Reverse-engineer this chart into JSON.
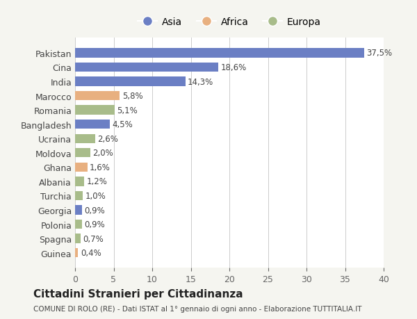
{
  "countries": [
    "Pakistan",
    "Cina",
    "India",
    "Marocco",
    "Romania",
    "Bangladesh",
    "Ucraina",
    "Moldova",
    "Ghana",
    "Albania",
    "Turchia",
    "Georgia",
    "Polonia",
    "Spagna",
    "Guinea"
  ],
  "values": [
    37.5,
    18.6,
    14.3,
    5.8,
    5.1,
    4.5,
    2.6,
    2.0,
    1.6,
    1.2,
    1.0,
    0.9,
    0.9,
    0.7,
    0.4
  ],
  "labels": [
    "37,5%",
    "18,6%",
    "14,3%",
    "5,8%",
    "5,1%",
    "4,5%",
    "2,6%",
    "2,0%",
    "1,6%",
    "1,2%",
    "1,0%",
    "0,9%",
    "0,9%",
    "0,7%",
    "0,4%"
  ],
  "colors": [
    "#6b7fc4",
    "#6b7fc4",
    "#6b7fc4",
    "#e8b080",
    "#a8bc8a",
    "#6b7fc4",
    "#a8bc8a",
    "#a8bc8a",
    "#e8b080",
    "#a8bc8a",
    "#a8bc8a",
    "#6b7fc4",
    "#a8bc8a",
    "#a8bc8a",
    "#e8b080"
  ],
  "legend": [
    {
      "label": "Asia",
      "color": "#6b7fc4"
    },
    {
      "label": "Africa",
      "color": "#e8b080"
    },
    {
      "label": "Europa",
      "color": "#a8bc8a"
    }
  ],
  "title": "Cittadini Stranieri per Cittadinanza",
  "subtitle": "COMUNE DI ROLO (RE) - Dati ISTAT al 1° gennaio di ogni anno - Elaborazione TUTTITALIA.IT",
  "xlim": [
    0,
    40
  ],
  "xticks": [
    0,
    5,
    10,
    15,
    20,
    25,
    30,
    35,
    40
  ],
  "background_color": "#f5f5f0",
  "bar_background": "#ffffff"
}
